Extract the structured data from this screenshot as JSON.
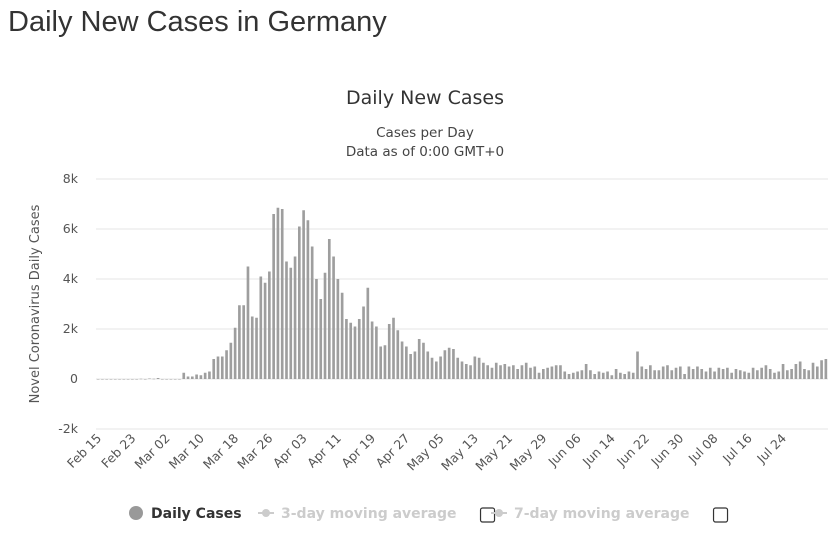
{
  "page": {
    "title": "Daily New Cases in Germany"
  },
  "colors": {
    "bar": "#9e9e9e",
    "grid": "#e6e6e6",
    "axis_text": "#555555",
    "legend_active": "#333333",
    "legend_inactive": "#cccccc",
    "legend_marker": "#999999"
  },
  "legend": {
    "items": [
      {
        "label": "Daily Cases",
        "active": true,
        "has_checkbox": false
      },
      {
        "label": "3-day moving average",
        "active": false,
        "has_checkbox": true
      },
      {
        "label": "7-day moving average",
        "active": false,
        "has_checkbox": true
      }
    ]
  },
  "chart_data": {
    "type": "bar",
    "title": "Daily New Cases",
    "subtitle": [
      "Cases per Day",
      "Data as of 0:00 GMT+0"
    ],
    "ylabel": "Novel Coronavirus Daily Cases",
    "ylim": [
      -2000,
      8000
    ],
    "yticks": [
      -2000,
      0,
      2000,
      4000,
      6000,
      8000
    ],
    "ytick_labels": [
      "-2k",
      "0",
      "2k",
      "4k",
      "6k",
      "8k"
    ],
    "x_start": "Feb 15",
    "xtick_labels": [
      "Feb 15",
      "Feb 23",
      "Mar 02",
      "Mar 10",
      "Mar 18",
      "Mar 26",
      "Apr 03",
      "Apr 11",
      "Apr 19",
      "Apr 27",
      "May 05",
      "May 13",
      "May 21",
      "May 29",
      "Jun 06",
      "Jun 14",
      "Jun 22",
      "Jun 30",
      "Jul 08",
      "Jul 16",
      "Jul 24"
    ],
    "grid": true,
    "series": [
      {
        "name": "Daily Cases",
        "values": [
          0,
          0,
          0,
          0,
          0,
          0,
          0,
          0,
          0,
          0,
          10,
          0,
          20,
          10,
          40,
          0,
          0,
          0,
          0,
          0,
          250,
          100,
          100,
          180,
          150,
          250,
          300,
          800,
          900,
          900,
          1150,
          1450,
          2050,
          2950,
          2950,
          4500,
          2500,
          2450,
          4100,
          3850,
          4300,
          6600,
          6850,
          6800,
          4700,
          4450,
          4900,
          6100,
          6750,
          6350,
          5300,
          4000,
          3200,
          4250,
          5600,
          4900,
          4000,
          3450,
          2400,
          2250,
          2100,
          2400,
          2900,
          3650,
          2300,
          2100,
          1300,
          1350,
          2200,
          2450,
          1950,
          1500,
          1300,
          1000,
          1100,
          1600,
          1450,
          1100,
          850,
          700,
          900,
          1150,
          1250,
          1200,
          850,
          700,
          600,
          550,
          900,
          850,
          650,
          550,
          450,
          650,
          550,
          600,
          500,
          550,
          400,
          550,
          650,
          450,
          500,
          250,
          400,
          450,
          500,
          550,
          550,
          300,
          200,
          250,
          300,
          350,
          600,
          350,
          200,
          300,
          250,
          300,
          150,
          400,
          250,
          200,
          300,
          250,
          1100,
          500,
          400,
          550,
          350,
          350,
          500,
          550,
          350,
          450,
          500,
          200,
          500,
          400,
          500,
          400,
          300,
          450,
          300,
          450,
          400,
          450,
          250,
          400,
          350,
          300,
          250,
          450,
          350,
          450,
          550,
          400,
          250,
          300,
          600,
          350,
          400,
          600,
          700,
          400,
          350,
          650,
          500,
          750,
          800
        ]
      }
    ]
  }
}
